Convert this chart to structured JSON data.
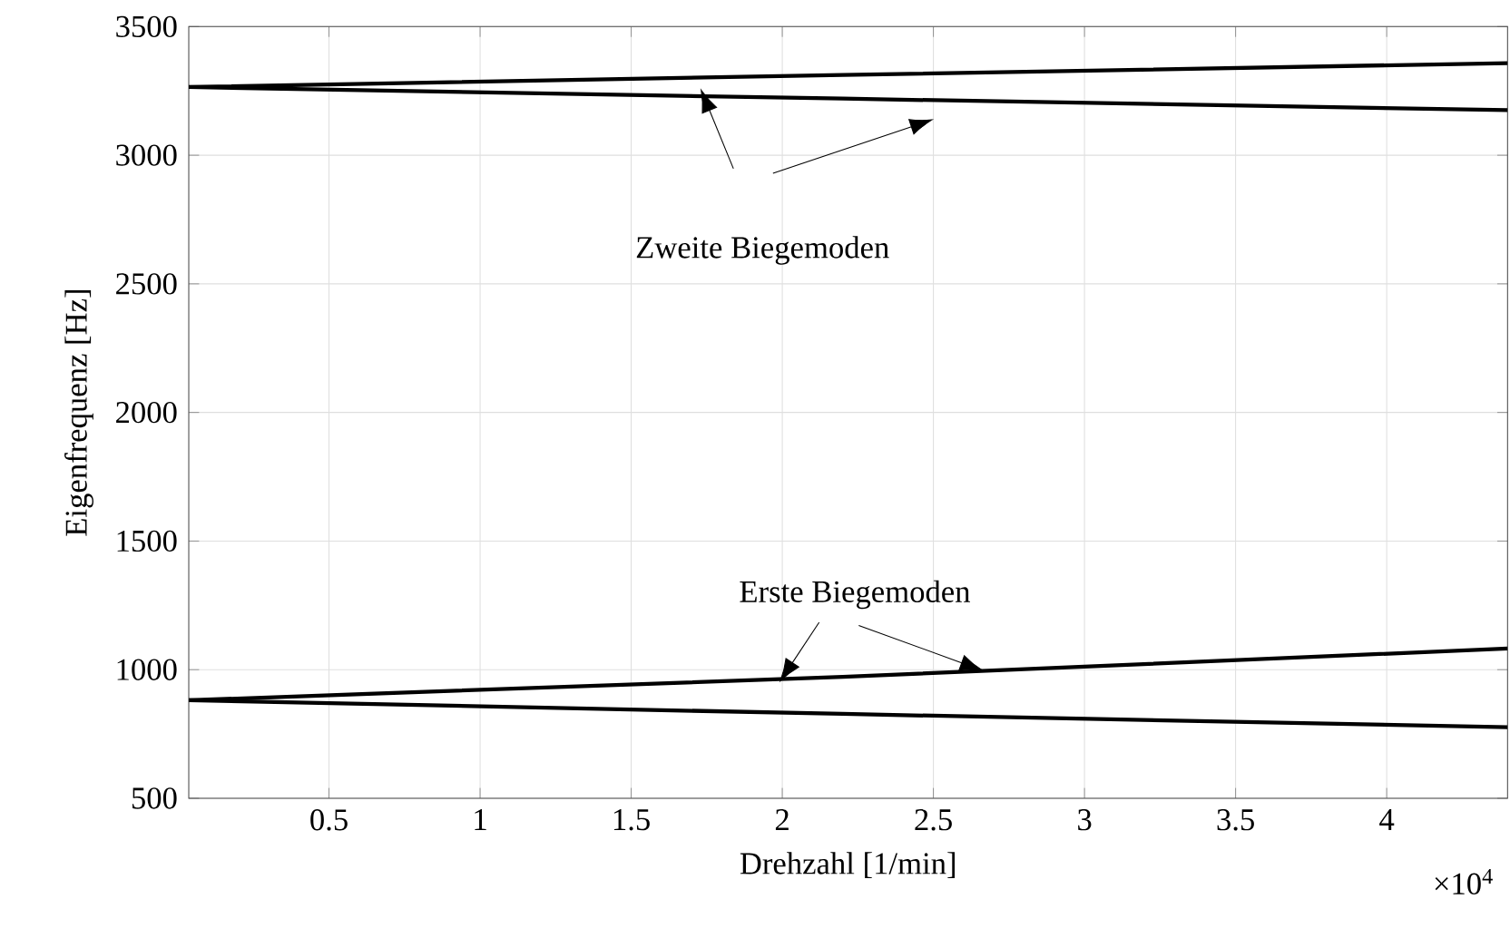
{
  "chart_data": {
    "type": "line",
    "xlabel": "Drehzahl [1/min]",
    "ylabel": "Eigenfrequenz [Hz]",
    "annotations": [
      "Zweite Biegemoden",
      {
        "text": "Erste Biegemoden",
        "x": 1.99,
        "y": 950
      },
      "×10$^{4}$"
    ],
    "x": [
      0.036,
      2.2,
      4.4
    ],
    "series": [
      {
        "color": "#000000",
        "values": [
          3265,
          3312,
          3358
        ]
      },
      {
        "color": "#000000",
        "values": [
          3265,
          3220,
          3175
        ]
      },
      {
        "color": "#000000",
        "values": [
          881,
          972,
          1082
        ]
      },
      {
        "color": "#000000",
        "values": [
          881,
          828,
          776
        ]
      }
    ],
    "xlim": [
      0.036,
      4.4
    ],
    "ylim": [
      500,
      3500
    ],
    "xticks": [
      0.5,
      1,
      1.5,
      2,
      2.5,
      3,
      3.5,
      4
    ],
    "yticks": [
      500,
      1000,
      1500,
      2000,
      2500,
      3000,
      3500
    ],
    "grid": true,
    "marker": "none",
    "line_style": "solid"
  }
}
